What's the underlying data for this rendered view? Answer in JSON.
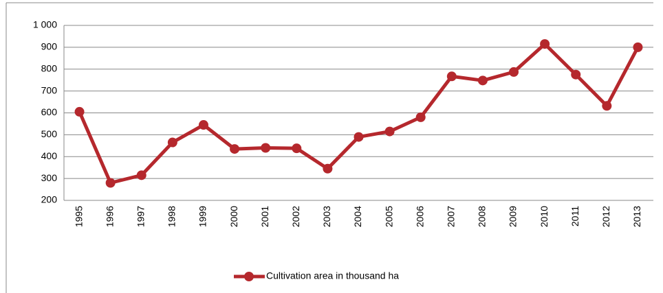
{
  "chart_data": {
    "type": "line",
    "categories": [
      "1995",
      "1996",
      "1997",
      "1998",
      "1999",
      "2000",
      "2001",
      "2002",
      "2003",
      "2004",
      "2005",
      "2006",
      "2007",
      "2008",
      "2009",
      "2010",
      "2011",
      "2012",
      "2013"
    ],
    "series": [
      {
        "name": "Cultivation area in thousand ha",
        "color": "#b5282d",
        "values": [
          605,
          280,
          315,
          465,
          545,
          435,
          440,
          438,
          345,
          490,
          515,
          580,
          767,
          748,
          787,
          915,
          775,
          632,
          900
        ]
      }
    ],
    "ylim": [
      200,
      1000
    ],
    "yticks": [
      200,
      300,
      400,
      500,
      600,
      700,
      800,
      900,
      {
        "value": 1000,
        "label": "1 000"
      }
    ],
    "grid": true,
    "legend": "bottom"
  }
}
